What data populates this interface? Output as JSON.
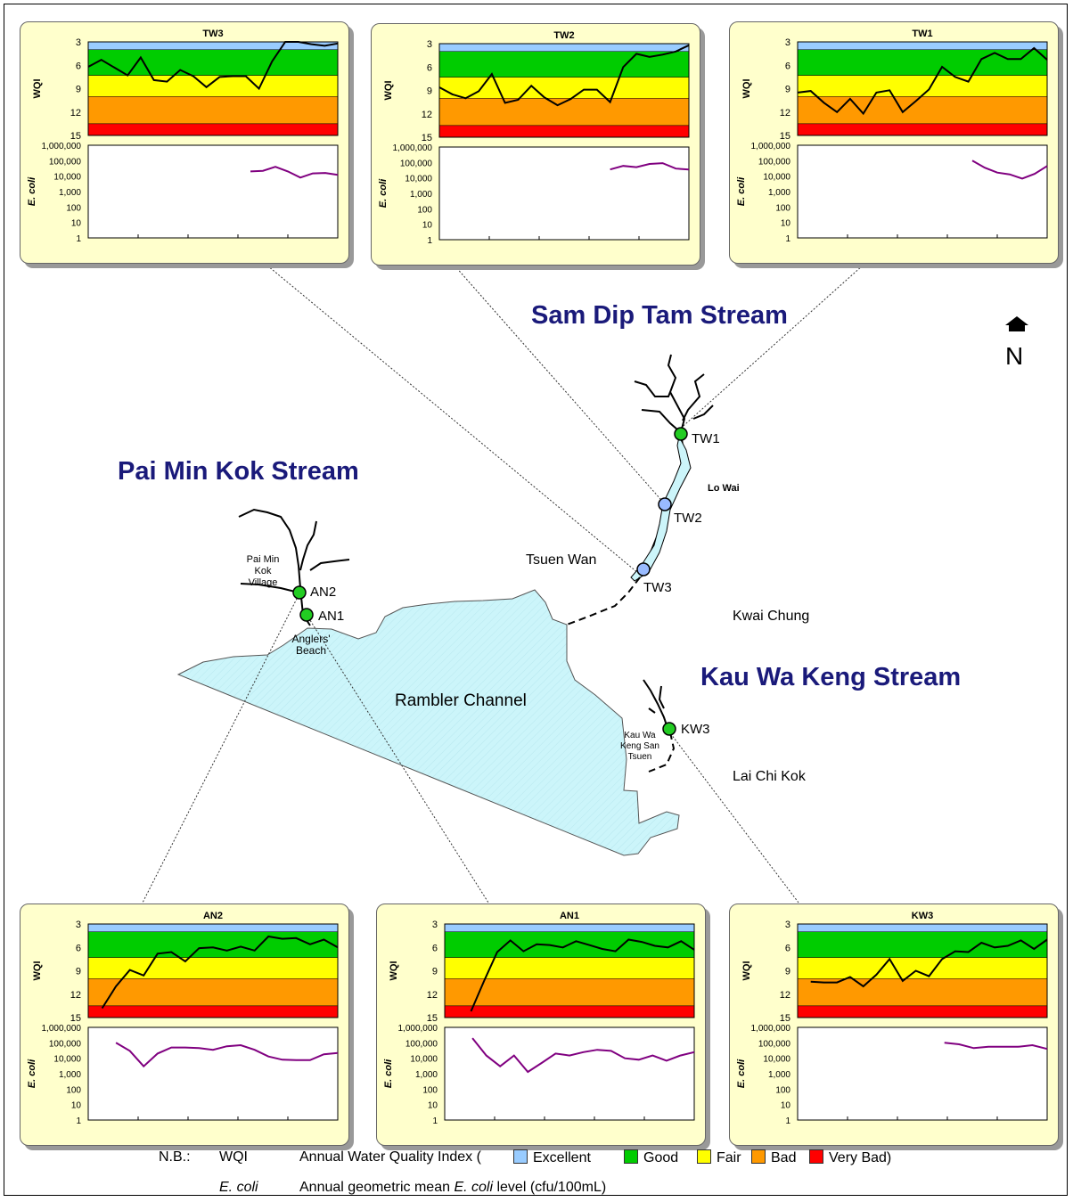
{
  "colors": {
    "excellent": "#99ccff",
    "good": "#00cc00",
    "fair": "#ffff00",
    "bad": "#ff9900",
    "very_bad": "#ff0000",
    "ecoli_line": "#800080",
    "wqi_line": "#000000",
    "stream_title": "#1a1a7a",
    "sea": "#ccf5fa",
    "station_green": "#22cc22",
    "station_blue": "#99bbff",
    "panel_bg": "#ffffcc"
  },
  "map": {
    "streams": {
      "sam_dip_tam": "Sam Dip Tam Stream",
      "pai_min_kok": "Pai Min Kok Stream",
      "kau_wa_keng": "Kau Wa Keng Stream"
    },
    "places": {
      "tsuen_wan": "Tsuen Wan",
      "kwai_chung": "Kwai Chung",
      "lai_chi_kok": "Lai Chi Kok",
      "rambler_channel": "Rambler Channel",
      "lo_wai": "Lo Wai",
      "pai_min_kok_village": [
        "Pai Min",
        "Kok",
        "Village"
      ],
      "anglers_beach": [
        "Anglers'",
        "Beach"
      ],
      "kau_wa_keng_san_tsuen": [
        "Kau Wa",
        "Keng San",
        "Tsuen"
      ]
    },
    "stations": {
      "tw1": "TW1",
      "tw2": "TW2",
      "tw3": "TW3",
      "an1": "AN1",
      "an2": "AN2",
      "kw3": "KW3"
    },
    "north": {
      "letter": "N",
      "icon": "north-arrow-icon"
    }
  },
  "chart_data": [
    {
      "type": "line",
      "station": "TW3",
      "title": "TW3",
      "wqi_label": "WQI",
      "ecoli_label": "E. coli",
      "wqi_ticks": [
        "3",
        "6",
        "9",
        "12",
        "15"
      ],
      "ecoli_ticks": [
        "1,000,000",
        "100,000",
        "10,000",
        "1,000",
        "100",
        "10",
        "1"
      ],
      "wqi_ylim": [
        15,
        3
      ],
      "ecoli_ylim": [
        1,
        1000000
      ],
      "wqi": [
        6.2,
        5.3,
        6.3,
        7.3,
        5.0,
        7.9,
        8.1,
        6.6,
        7.4,
        8.8,
        7.5,
        7.4,
        7.4,
        9.0,
        5.5,
        3.0,
        3.0,
        3.3,
        3.5,
        3.2
      ],
      "ecoli": [
        null,
        null,
        null,
        null,
        null,
        null,
        null,
        null,
        null,
        null,
        null,
        null,
        null,
        20000,
        22000,
        40000,
        20000,
        8000,
        15000,
        16000,
        12000
      ]
    },
    {
      "type": "line",
      "station": "TW2",
      "title": "TW2",
      "wqi_label": "WQI",
      "ecoli_label": "E. coli",
      "wqi_ticks": [
        "3",
        "6",
        "9",
        "12",
        "15"
      ],
      "ecoli_ticks": [
        "1,000,000",
        "100,000",
        "10,000",
        "1,000",
        "100",
        "10",
        "1"
      ],
      "wqi_ylim": [
        15,
        3
      ],
      "ecoli_ylim": [
        1,
        1000000
      ],
      "wqi": [
        8.6,
        9.5,
        10.0,
        9.1,
        6.9,
        10.6,
        10.2,
        8.4,
        9.9,
        10.9,
        10.1,
        8.9,
        8.9,
        10.5,
        6.0,
        4.3,
        4.7,
        4.4,
        4.0,
        3.2
      ],
      "ecoli": [
        null,
        null,
        null,
        null,
        null,
        null,
        null,
        null,
        null,
        null,
        null,
        null,
        null,
        35000,
        60000,
        50000,
        80000,
        90000,
        40000,
        35000
      ]
    },
    {
      "type": "line",
      "station": "TW1",
      "title": "TW1",
      "wqi_label": "WQI",
      "ecoli_label": "E. coli",
      "wqi_ticks": [
        "3",
        "6",
        "9",
        "12",
        "15"
      ],
      "ecoli_ticks": [
        "1,000,000",
        "100,000",
        "10,000",
        "1,000",
        "100",
        "10",
        "1"
      ],
      "wqi_ylim": [
        15,
        3
      ],
      "ecoli_ylim": [
        1,
        1000000
      ],
      "wqi": [
        9.5,
        9.3,
        10.8,
        12.0,
        10.3,
        12.2,
        9.5,
        9.2,
        12.0,
        10.6,
        9.1,
        6.2,
        7.5,
        8.1,
        5.2,
        4.4,
        5.2,
        5.2,
        3.8,
        5.3
      ],
      "ecoli": [
        null,
        null,
        null,
        null,
        null,
        null,
        null,
        null,
        null,
        null,
        null,
        null,
        null,
        null,
        100000,
        35000,
        17000,
        13000,
        7000,
        14000,
        45000
      ]
    },
    {
      "type": "line",
      "station": "AN2",
      "title": "AN2",
      "wqi_label": "WQI",
      "ecoli_label": "E. coli",
      "wqi_ticks": [
        "3",
        "6",
        "9",
        "12",
        "15"
      ],
      "ecoli_ticks": [
        "1,000,000",
        "100,000",
        "10,000",
        "1,000",
        "100",
        "10",
        "1"
      ],
      "wqi_ylim": [
        15,
        3
      ],
      "ecoli_ylim": [
        1,
        1000000
      ],
      "wqi": [
        null,
        13.8,
        11.0,
        8.9,
        9.6,
        6.8,
        6.6,
        7.8,
        6.1,
        6.0,
        6.4,
        5.9,
        6.4,
        4.6,
        4.9,
        4.8,
        5.6,
        5.0,
        6.0
      ],
      "ecoli": [
        null,
        null,
        100000,
        30000,
        3000,
        20000,
        50000,
        50000,
        45000,
        35000,
        60000,
        70000,
        35000,
        13000,
        8000,
        7500,
        7500,
        18000,
        22000
      ]
    },
    {
      "type": "line",
      "station": "AN1",
      "title": "AN1",
      "wqi_label": "WQI",
      "ecoli_label": "E. coli",
      "wqi_ticks": [
        "3",
        "6",
        "9",
        "12",
        "15"
      ],
      "ecoli_ticks": [
        "1,000,000",
        "100,000",
        "10,000",
        "1,000",
        "100",
        "10",
        "1"
      ],
      "wqi_ylim": [
        15,
        3
      ],
      "ecoli_ylim": [
        1,
        1000000
      ],
      "wqi": [
        null,
        null,
        14.2,
        10.3,
        6.6,
        5.1,
        6.5,
        5.6,
        5.7,
        6.0,
        5.2,
        5.7,
        6.2,
        6.5,
        5.0,
        5.3,
        5.8,
        6.0,
        5.2,
        6.3
      ],
      "ecoli": [
        null,
        null,
        200000,
        15000,
        3000,
        15000,
        1300,
        5000,
        20000,
        15000,
        25000,
        35000,
        30000,
        10000,
        8000,
        15000,
        7000,
        15000,
        25000
      ]
    },
    {
      "type": "line",
      "station": "KW3",
      "title": "KW3",
      "wqi_label": "WQI",
      "ecoli_label": "E. coli",
      "wqi_ticks": [
        "3",
        "6",
        "9",
        "12",
        "15"
      ],
      "ecoli_ticks": [
        "1,000,000",
        "100,000",
        "10,000",
        "1,000",
        "100",
        "10",
        "1"
      ],
      "wqi_ylim": [
        15,
        3
      ],
      "ecoli_ylim": [
        1,
        1000000
      ],
      "wqi": [
        null,
        10.4,
        10.5,
        10.5,
        9.8,
        11.0,
        9.5,
        7.5,
        10.3,
        9.0,
        9.7,
        7.5,
        6.5,
        6.6,
        5.4,
        6.0,
        5.8,
        5.1,
        6.2,
        5.0
      ],
      "ecoli": [
        null,
        null,
        null,
        null,
        null,
        null,
        null,
        null,
        null,
        null,
        100000,
        80000,
        45000,
        55000,
        55000,
        55000,
        70000,
        40000
      ]
    }
  ],
  "legend": {
    "nb": "N.B.:",
    "wqi_key": "WQI",
    "wqi_desc": "Annual Water Quality Index (",
    "excellent": "Excellent",
    "good": "Good",
    "fair": "Fair",
    "bad": "Bad",
    "very_bad": "Very Bad)",
    "ecoli_key": "E. coli",
    "ecoli_desc_pre": "Annual geometric mean ",
    "ecoli_desc_em": "E. coli",
    "ecoli_desc_post": " level (cfu/100mL)"
  }
}
